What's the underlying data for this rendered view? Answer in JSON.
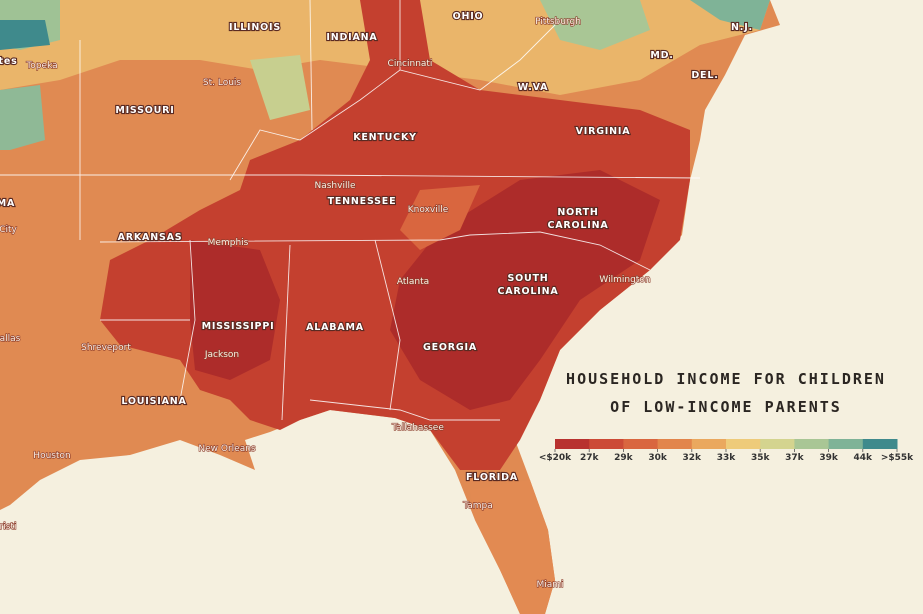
{
  "title": [
    "HOUSEHOLD INCOME FOR CHILDREN",
    "OF LOW-INCOME PARENTS"
  ],
  "legend": {
    "labels": [
      "<$20k",
      "27k",
      "29k",
      "30k",
      "32k",
      "33k",
      "35k",
      "37k",
      "39k",
      "44k",
      ">$55k"
    ],
    "colors": [
      "#b8322f",
      "#cc4a36",
      "#d9663f",
      "#e2854b",
      "#eaa85e",
      "#eecb7a",
      "#d4d48f",
      "#a9c695",
      "#7fb397",
      "#3f8a8c"
    ]
  },
  "states": [
    "ILLINOIS",
    "INDIANA",
    "OHIO",
    "MD.",
    "DEL.",
    "N.J.",
    "MISSOURI",
    "KENTUCKY",
    "VIRGINIA",
    "W.VA",
    "TENNESSEE",
    "NORTH",
    "CAROLINA",
    "ARKANSAS",
    "SOUTH",
    "CAROLINA",
    "MISSISSIPPI",
    "ALABAMA",
    "GEORGIA",
    "LOUISIANA",
    "FLORIDA",
    "tes",
    "MA"
  ],
  "cities": [
    "Pittsburgh",
    "Topeka",
    "St. Louis",
    "Cincinnati",
    "Nashville",
    "Knoxville",
    "Memphis",
    "City",
    "Atlanta",
    "Wilmington",
    "allas",
    "Shreveport",
    "Jackson",
    "Houston",
    "New Orleans",
    "Tallahassee",
    "Tampa",
    "Miami",
    "risti"
  ]
}
